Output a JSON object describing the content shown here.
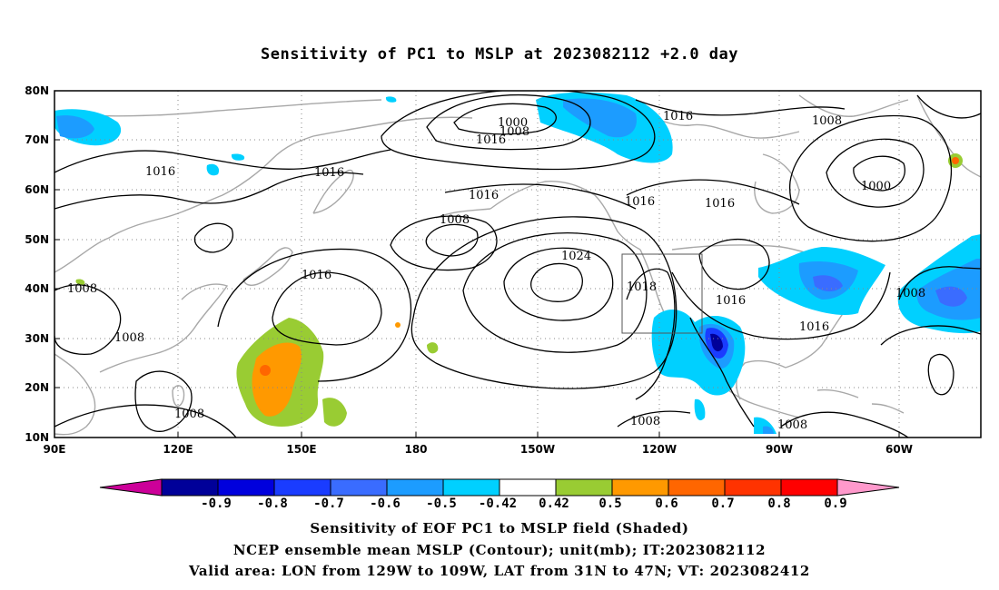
{
  "title": "Sensitivity of PC1 to MSLP at 2023082112 +2.0 day",
  "lat_labels": [
    "80N",
    "70N",
    "60N",
    "50N",
    "40N",
    "30N",
    "20N",
    "10N"
  ],
  "lon_labels": [
    "90E",
    "120E",
    "150E",
    "180",
    "150W",
    "120W",
    "90W",
    "60W"
  ],
  "contour_labels": {
    "l1016_a": "1016",
    "l1000_a": "1000",
    "l1008_a": "1008",
    "l1016_b": "1016",
    "l1016_c": "1016",
    "l1008_b": "1008",
    "l1016_d": "1016",
    "l1016_e": "1016",
    "l1008_c": "1008",
    "l1008_d": "1008",
    "l1016_f": "1016",
    "l1016_g": "1016",
    "l1008_e": "1008",
    "l1024": "1024",
    "l1018": "1018",
    "l1016_h": "1016",
    "l1016_i": "1016",
    "l1008_f": "1008",
    "l1008_g": "1008",
    "l1000_b": "1000",
    "l1008_h": "1008",
    "l1008_i": "1008"
  },
  "colorbar": {
    "labels": [
      "-0.9",
      "-0.8",
      "-0.7",
      "-0.6",
      "-0.5",
      "-0.42",
      "0.42",
      "0.5",
      "0.6",
      "0.7",
      "0.8",
      "0.9"
    ],
    "colors": [
      "#000099",
      "#0000dd",
      "#1a3cff",
      "#3a6cff",
      "#1c9cff",
      "#00d0ff",
      "#ffffff",
      "#99cc33",
      "#ff9900",
      "#ff6600",
      "#ff3300",
      "#ff0000"
    ],
    "low_end_color": "#cc0099",
    "high_end_color": "#ff99cc"
  },
  "caption": {
    "line1": "Sensitivity of EOF PC1 to MSLP field (Shaded)",
    "line2": "NCEP ensemble mean MSLP (Contour); unit(mb); IT:2023082112",
    "line3": "Valid area: LON from 129W to 109W, LAT from 31N to 47N; VT: 2023082412"
  }
}
